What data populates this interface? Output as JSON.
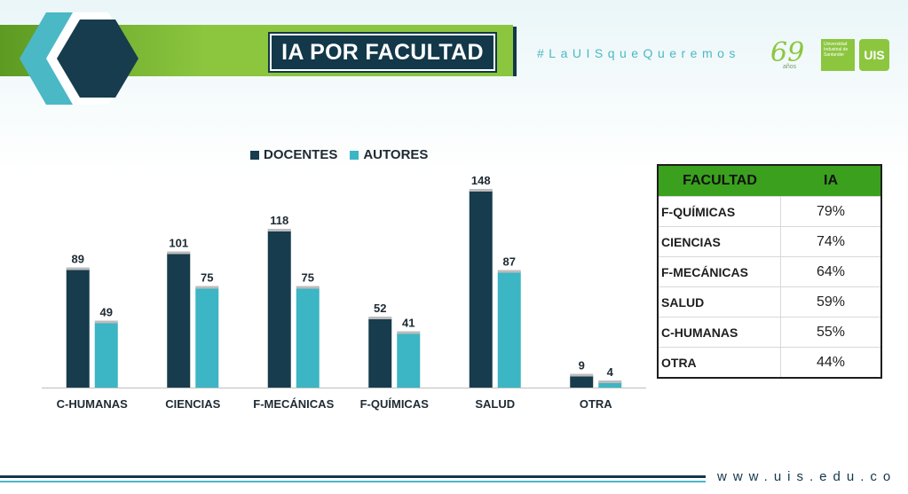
{
  "header": {
    "title": "IA POR FACULTAD",
    "hashtag": "#LaUISqueQueremos"
  },
  "logos": {
    "anniversary": "69",
    "anniversary_sub": "años",
    "uis_lines": [
      "Universidad",
      "Industrial de",
      "Santander"
    ],
    "uis_shield": "UIS"
  },
  "colors": {
    "docentes": "#163c4d",
    "autores": "#3cb5c4",
    "header_green": "#8cc63f",
    "table_header": "#3aa01d",
    "navy": "#12384a"
  },
  "chart_data": {
    "type": "bar",
    "categories": [
      "C-HUMANAS",
      "CIENCIAS",
      "F-MECÁNICAS",
      "F-QUÍMICAS",
      "SALUD",
      "OTRA"
    ],
    "series": [
      {
        "name": "DOCENTES",
        "values": [
          89,
          101,
          118,
          52,
          148,
          9
        ]
      },
      {
        "name": "AUTORES",
        "values": [
          49,
          75,
          75,
          41,
          87,
          4
        ]
      }
    ],
    "ylim": [
      0,
      160
    ],
    "grid": false,
    "legend": "top",
    "data_labels": true
  },
  "table": {
    "headers": [
      "FACULTAD",
      "IA"
    ],
    "rows": [
      [
        "F-QUÍMICAS",
        "79%"
      ],
      [
        "CIENCIAS",
        "74%"
      ],
      [
        "F-MECÁNICAS",
        "64%"
      ],
      [
        "SALUD",
        "59%"
      ],
      [
        "C-HUMANAS",
        "55%"
      ],
      [
        "OTRA",
        "44%"
      ]
    ]
  },
  "footer": {
    "url": "www.uis.edu.co"
  }
}
